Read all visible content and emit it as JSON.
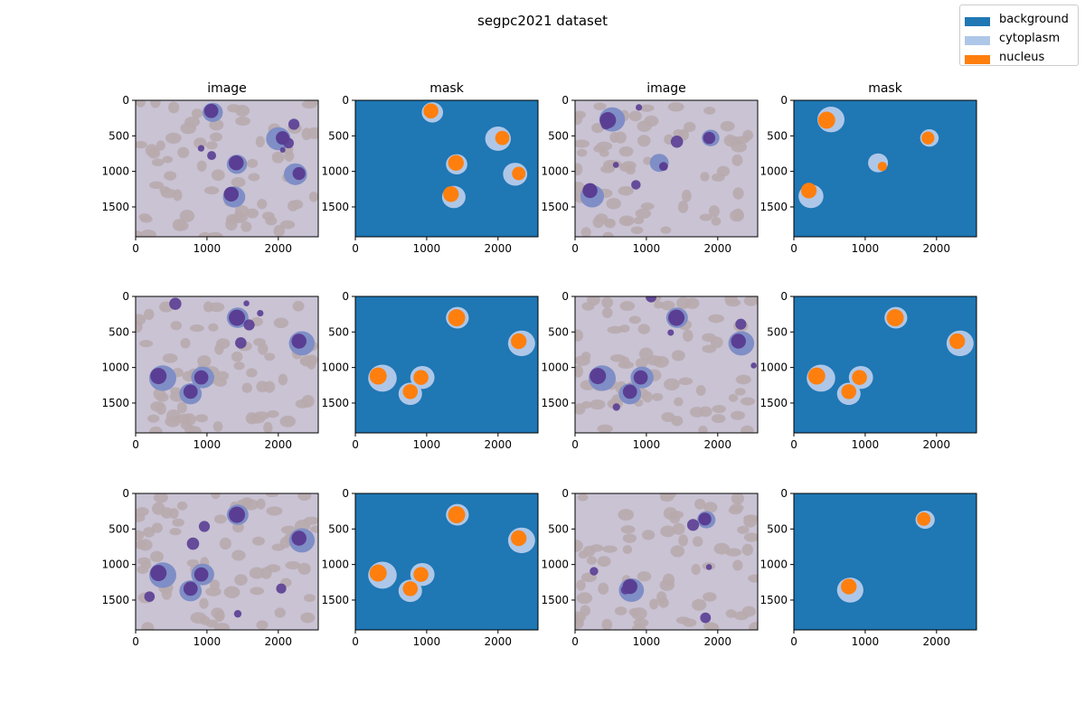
{
  "figure_title": "segpc2021 dataset",
  "colors": {
    "background": "#1f77b4",
    "cytoplasm": "#aec7e8",
    "nucleus": "#ff7f0e",
    "image_bg": "#c9c3d4",
    "rbc": "#b7a9ab",
    "cell_purple": "#5a3e93",
    "cell_blue": "#7f8ec6"
  },
  "chart_data": {
    "type": "image-grid",
    "title": "segpc2021 dataset",
    "rows": 3,
    "cols": 4,
    "column_titles": [
      "image",
      "mask",
      "image",
      "mask"
    ],
    "xlim": [
      0,
      2560
    ],
    "ylim": [
      1920,
      0
    ],
    "x_ticks": [
      0,
      1000,
      2000
    ],
    "y_ticks": [
      0,
      500,
      1000,
      1500
    ],
    "legend": {
      "placement": "top-right",
      "entries": [
        {
          "label": "background",
          "color": "#1f77b4"
        },
        {
          "label": "cytoplasm",
          "color": "#aec7e8"
        },
        {
          "label": "nucleus",
          "color": "#ff7f0e"
        }
      ]
    },
    "samples": [
      {
        "cells": [
          {
            "x": 1080,
            "y": 170,
            "cr": 150,
            "nr": 105,
            "nx": 1060,
            "ny": 150
          },
          {
            "x": 1420,
            "y": 900,
            "cr": 150,
            "nr": 110,
            "nx": 1410,
            "ny": 880
          },
          {
            "x": 2000,
            "y": 540,
            "cr": 180,
            "nr": 100,
            "nx": 2060,
            "ny": 530
          },
          {
            "x": 2240,
            "y": 1040,
            "cr": 170,
            "nr": 95,
            "nx": 2290,
            "ny": 1030
          },
          {
            "x": 1380,
            "y": 1360,
            "cr": 165,
            "nr": 110,
            "nx": 1340,
            "ny": 1320
          }
        ]
      },
      {
        "cells": [
          {
            "x": 520,
            "y": 270,
            "cr": 190,
            "nr": 120,
            "nx": 460,
            "ny": 280
          },
          {
            "x": 1900,
            "y": 530,
            "cr": 130,
            "nr": 90,
            "nx": 1880,
            "ny": 530
          },
          {
            "x": 1180,
            "y": 880,
            "cr": 140,
            "nr": 65,
            "nx": 1240,
            "ny": 930
          },
          {
            "x": 240,
            "y": 1350,
            "cr": 175,
            "nr": 110,
            "nx": 210,
            "ny": 1270
          }
        ]
      },
      {
        "cells": [
          {
            "x": 1430,
            "y": 300,
            "cr": 160,
            "nr": 120,
            "nx": 1420,
            "ny": 300
          },
          {
            "x": 2330,
            "y": 660,
            "cr": 190,
            "nr": 110,
            "nx": 2290,
            "ny": 630
          },
          {
            "x": 380,
            "y": 1150,
            "cr": 200,
            "nr": 120,
            "nx": 320,
            "ny": 1120
          },
          {
            "x": 940,
            "y": 1140,
            "cr": 170,
            "nr": 105,
            "nx": 920,
            "ny": 1140
          },
          {
            "x": 770,
            "y": 1370,
            "cr": 165,
            "nr": 105,
            "nx": 770,
            "ny": 1340
          }
        ]
      },
      {
        "cells": [
          {
            "x": 1430,
            "y": 300,
            "cr": 160,
            "nr": 120,
            "nx": 1420,
            "ny": 300
          },
          {
            "x": 2330,
            "y": 660,
            "cr": 190,
            "nr": 110,
            "nx": 2290,
            "ny": 630
          },
          {
            "x": 380,
            "y": 1150,
            "cr": 200,
            "nr": 120,
            "nx": 320,
            "ny": 1120
          },
          {
            "x": 940,
            "y": 1140,
            "cr": 170,
            "nr": 105,
            "nx": 920,
            "ny": 1140
          },
          {
            "x": 770,
            "y": 1370,
            "cr": 165,
            "nr": 105,
            "nx": 770,
            "ny": 1340
          }
        ]
      },
      {
        "cells": [
          {
            "x": 1430,
            "y": 300,
            "cr": 160,
            "nr": 120,
            "nx": 1420,
            "ny": 300
          },
          {
            "x": 2330,
            "y": 660,
            "cr": 190,
            "nr": 110,
            "nx": 2290,
            "ny": 630
          },
          {
            "x": 380,
            "y": 1150,
            "cr": 200,
            "nr": 120,
            "nx": 320,
            "ny": 1120
          },
          {
            "x": 940,
            "y": 1140,
            "cr": 170,
            "nr": 105,
            "nx": 920,
            "ny": 1140
          },
          {
            "x": 770,
            "y": 1370,
            "cr": 165,
            "nr": 105,
            "nx": 770,
            "ny": 1340
          }
        ]
      },
      {
        "cells": [
          {
            "x": 1840,
            "y": 370,
            "cr": 135,
            "nr": 95,
            "nx": 1820,
            "ny": 360
          },
          {
            "x": 790,
            "y": 1360,
            "cr": 185,
            "nr": 110,
            "nx": 770,
            "ny": 1310
          }
        ]
      }
    ]
  }
}
